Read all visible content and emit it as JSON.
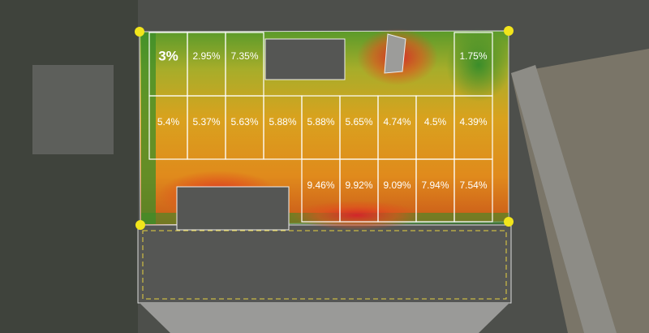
{
  "panels": {
    "rows": [
      [
        "3%",
        "2.95%",
        "7.35%",
        "1.75%"
      ],
      [
        "5.4%",
        "5.37%",
        "5.63%",
        "5.88%",
        "5.88%",
        "5.65%",
        "4.74%",
        "4.5%",
        "4.39%"
      ],
      [
        "9.46%",
        "9.92%",
        "9.09%",
        "7.94%",
        "7.54%"
      ]
    ]
  }
}
